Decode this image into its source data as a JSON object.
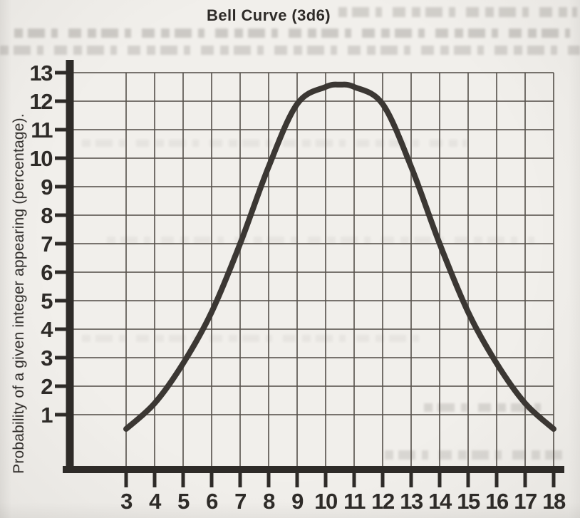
{
  "chart_data": {
    "type": "line",
    "title": "Bell Curve (3d6)",
    "xlabel": "",
    "ylabel": "Probability of a given integer appearing (percentage).",
    "x": [
      3,
      4,
      5,
      6,
      7,
      8,
      9,
      10,
      11,
      12,
      13,
      14,
      15,
      16,
      17,
      18
    ],
    "values": [
      0.5,
      1.4,
      2.8,
      4.6,
      7.0,
      9.7,
      11.9,
      12.5,
      12.5,
      11.9,
      9.7,
      7.0,
      4.6,
      2.8,
      1.4,
      0.5
    ],
    "peak": {
      "x": 10.5,
      "y": 12.58
    },
    "x_tick_labels": [
      "3",
      "4",
      "5",
      "6",
      "7",
      "8",
      "9",
      "10",
      "11",
      "12",
      "13",
      "14",
      "15",
      "16",
      "17",
      "18"
    ],
    "y_tick_labels": [
      "1",
      "2",
      "3",
      "4",
      "5",
      "6",
      "7",
      "8",
      "9",
      "10",
      "11",
      "12",
      "13"
    ],
    "xlim": [
      3,
      18
    ],
    "ylim": [
      0,
      13.5
    ],
    "grid": "on",
    "legend": "none",
    "colors": {
      "ink": "#2e2b28",
      "grid": "#57524c",
      "curve": "#3b3733",
      "paper": "#f1efeb"
    }
  }
}
